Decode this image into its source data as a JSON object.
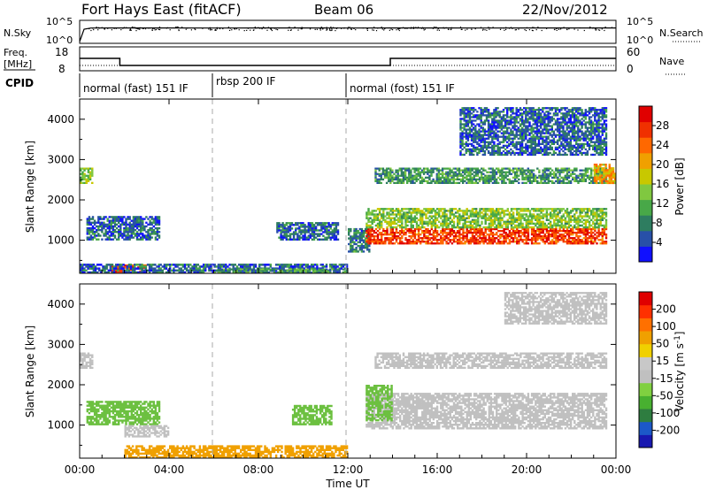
{
  "header": {
    "title": "Fort Hays East (fitACF)",
    "beam": "Beam 06",
    "date": "22/Nov/2012"
  },
  "sky_panel": {
    "left_label": "N.Sky",
    "right_label": "N.Search",
    "left_ticks": [
      "10^5",
      "10^0"
    ],
    "right_ticks": [
      "10^5",
      "10^0"
    ]
  },
  "freq_panel": {
    "left_label_1": "Freq.",
    "left_label_2": "[MHz]",
    "right_label": "Nave",
    "left_ticks": [
      "18",
      "8"
    ],
    "right_ticks": [
      "60",
      "0"
    ]
  },
  "cpid_panel": {
    "label": "CPID",
    "segments": [
      {
        "label": "normal (fast) 151 IF",
        "start": 0,
        "end": 6
      },
      {
        "label": "rbsp 200 IF",
        "start": 6,
        "end": 12
      },
      {
        "label": "normal (fost) 151 IF",
        "start": 12,
        "end": 24
      }
    ]
  },
  "time_axis": {
    "label": "Time UT",
    "ticks": [
      "00:00",
      "04:00",
      "08:00",
      "12:00",
      "16:00",
      "20:00",
      "00:00"
    ]
  },
  "range_axis": {
    "label": "Slant Range [km]",
    "ticks": [
      "1000",
      "2000",
      "3000",
      "4000"
    ]
  },
  "power_colorbar": {
    "label": "Power [dB]",
    "ticks": [
      "4",
      "8",
      "12",
      "16",
      "20",
      "24",
      "28"
    ],
    "colors": [
      "#1010ff",
      "#2850a8",
      "#2e7d60",
      "#48a848",
      "#80c840",
      "#c8c800",
      "#f0a000",
      "#ff6800",
      "#f03000",
      "#e00000"
    ]
  },
  "velocity_colorbar": {
    "label": "Velocity [m s^-1]",
    "ticks": [
      "200",
      "100",
      "50",
      "15",
      "-15",
      "-50",
      "-100",
      "-200"
    ],
    "colors": [
      "#1818b0",
      "#1c58c8",
      "#2e7d40",
      "#48b030",
      "#80d040",
      "#c0c0c0",
      "#c8c8c8",
      "#f0d000",
      "#f0a000",
      "#ff7000",
      "#ff3000",
      "#e00000"
    ]
  },
  "chart_data": [
    {
      "type": "line",
      "title": "N.Sky / N.Search",
      "x_range": [
        0,
        24
      ],
      "series": [
        {
          "name": "N.Sky",
          "x": [
            0,
            0.2,
            0.5,
            2,
            4,
            6,
            8,
            10,
            12,
            14,
            16,
            18,
            20,
            22,
            24
          ],
          "values": [
            0,
            1500,
            3000,
            3200,
            3100,
            3000,
            3200,
            3100,
            3000,
            3100,
            3200,
            3000,
            3100,
            3200,
            3100
          ]
        }
      ]
    },
    {
      "type": "line",
      "x_range": [
        0,
        24
      ],
      "series": [
        {
          "name": "Freq.",
          "x": [
            0,
            1.8,
            1.8,
            13.9,
            13.9,
            24
          ],
          "values": [
            14,
            14,
            10,
            10,
            14,
            14
          ],
          "ylim": [
            8,
            18
          ]
        },
        {
          "name": "Nave",
          "x": [
            0,
            24
          ],
          "values": [
            12,
            12
          ],
          "ylim": [
            0,
            60
          ]
        }
      ]
    },
    {
      "type": "heatmap",
      "quantity": "Power [dB]",
      "x_range": [
        0,
        24
      ],
      "y_range": [
        180,
        4500
      ],
      "regions": [
        {
          "t0": 0.0,
          "t1": 0.6,
          "r0": 2400,
          "r1": 2800,
          "value": 14
        },
        {
          "t0": 0.3,
          "t1": 3.6,
          "r0": 1000,
          "r1": 1600,
          "value": 6
        },
        {
          "t0": 1.4,
          "t1": 3.0,
          "r0": 200,
          "r1": 400,
          "value": 27
        },
        {
          "t0": 0.0,
          "t1": 12.0,
          "r0": 180,
          "r1": 420,
          "value": 6
        },
        {
          "t0": 6.0,
          "t1": 12.0,
          "r0": 180,
          "r1": 300,
          "value": 10
        },
        {
          "t0": 8.8,
          "t1": 11.6,
          "r0": 1000,
          "r1": 1450,
          "value": 6
        },
        {
          "t0": 12.0,
          "t1": 13.0,
          "r0": 700,
          "r1": 1300,
          "value": 8
        },
        {
          "t0": 12.8,
          "t1": 23.6,
          "r0": 900,
          "r1": 1300,
          "value": 27
        },
        {
          "t0": 12.8,
          "t1": 23.6,
          "r0": 1300,
          "r1": 1800,
          "value": 14
        },
        {
          "t0": 13.2,
          "t1": 23.6,
          "r0": 2400,
          "r1": 2800,
          "value": 10
        },
        {
          "t0": 17.0,
          "t1": 23.6,
          "r0": 3100,
          "r1": 4300,
          "value": 6
        },
        {
          "t0": 23.0,
          "t1": 24.0,
          "r0": 2400,
          "r1": 2900,
          "value": 20
        }
      ]
    },
    {
      "type": "heatmap",
      "quantity": "Velocity [m s^-1]",
      "x_range": [
        0,
        24
      ],
      "y_range": [
        180,
        4500
      ],
      "regions": [
        {
          "t0": 0.0,
          "t1": 0.6,
          "r0": 2400,
          "r1": 2800,
          "value": 0
        },
        {
          "t0": 0.3,
          "t1": 3.6,
          "r0": 1000,
          "r1": 1600,
          "value": 40
        },
        {
          "t0": 2.0,
          "t1": 4.0,
          "r0": 700,
          "r1": 1000,
          "value": 0
        },
        {
          "t0": 2.0,
          "t1": 12.0,
          "r0": 180,
          "r1": 500,
          "value": -60
        },
        {
          "t0": 9.5,
          "t1": 11.3,
          "r0": 1000,
          "r1": 1500,
          "value": 40
        },
        {
          "t0": 12.8,
          "t1": 23.6,
          "r0": 900,
          "r1": 1800,
          "value": 0
        },
        {
          "t0": 13.2,
          "t1": 23.6,
          "r0": 2400,
          "r1": 2800,
          "value": 0
        },
        {
          "t0": 12.8,
          "t1": 14.0,
          "r0": 1100,
          "r1": 2000,
          "value": 40
        },
        {
          "t0": 19.0,
          "t1": 23.6,
          "r0": 3500,
          "r1": 4300,
          "value": 0
        }
      ]
    }
  ]
}
